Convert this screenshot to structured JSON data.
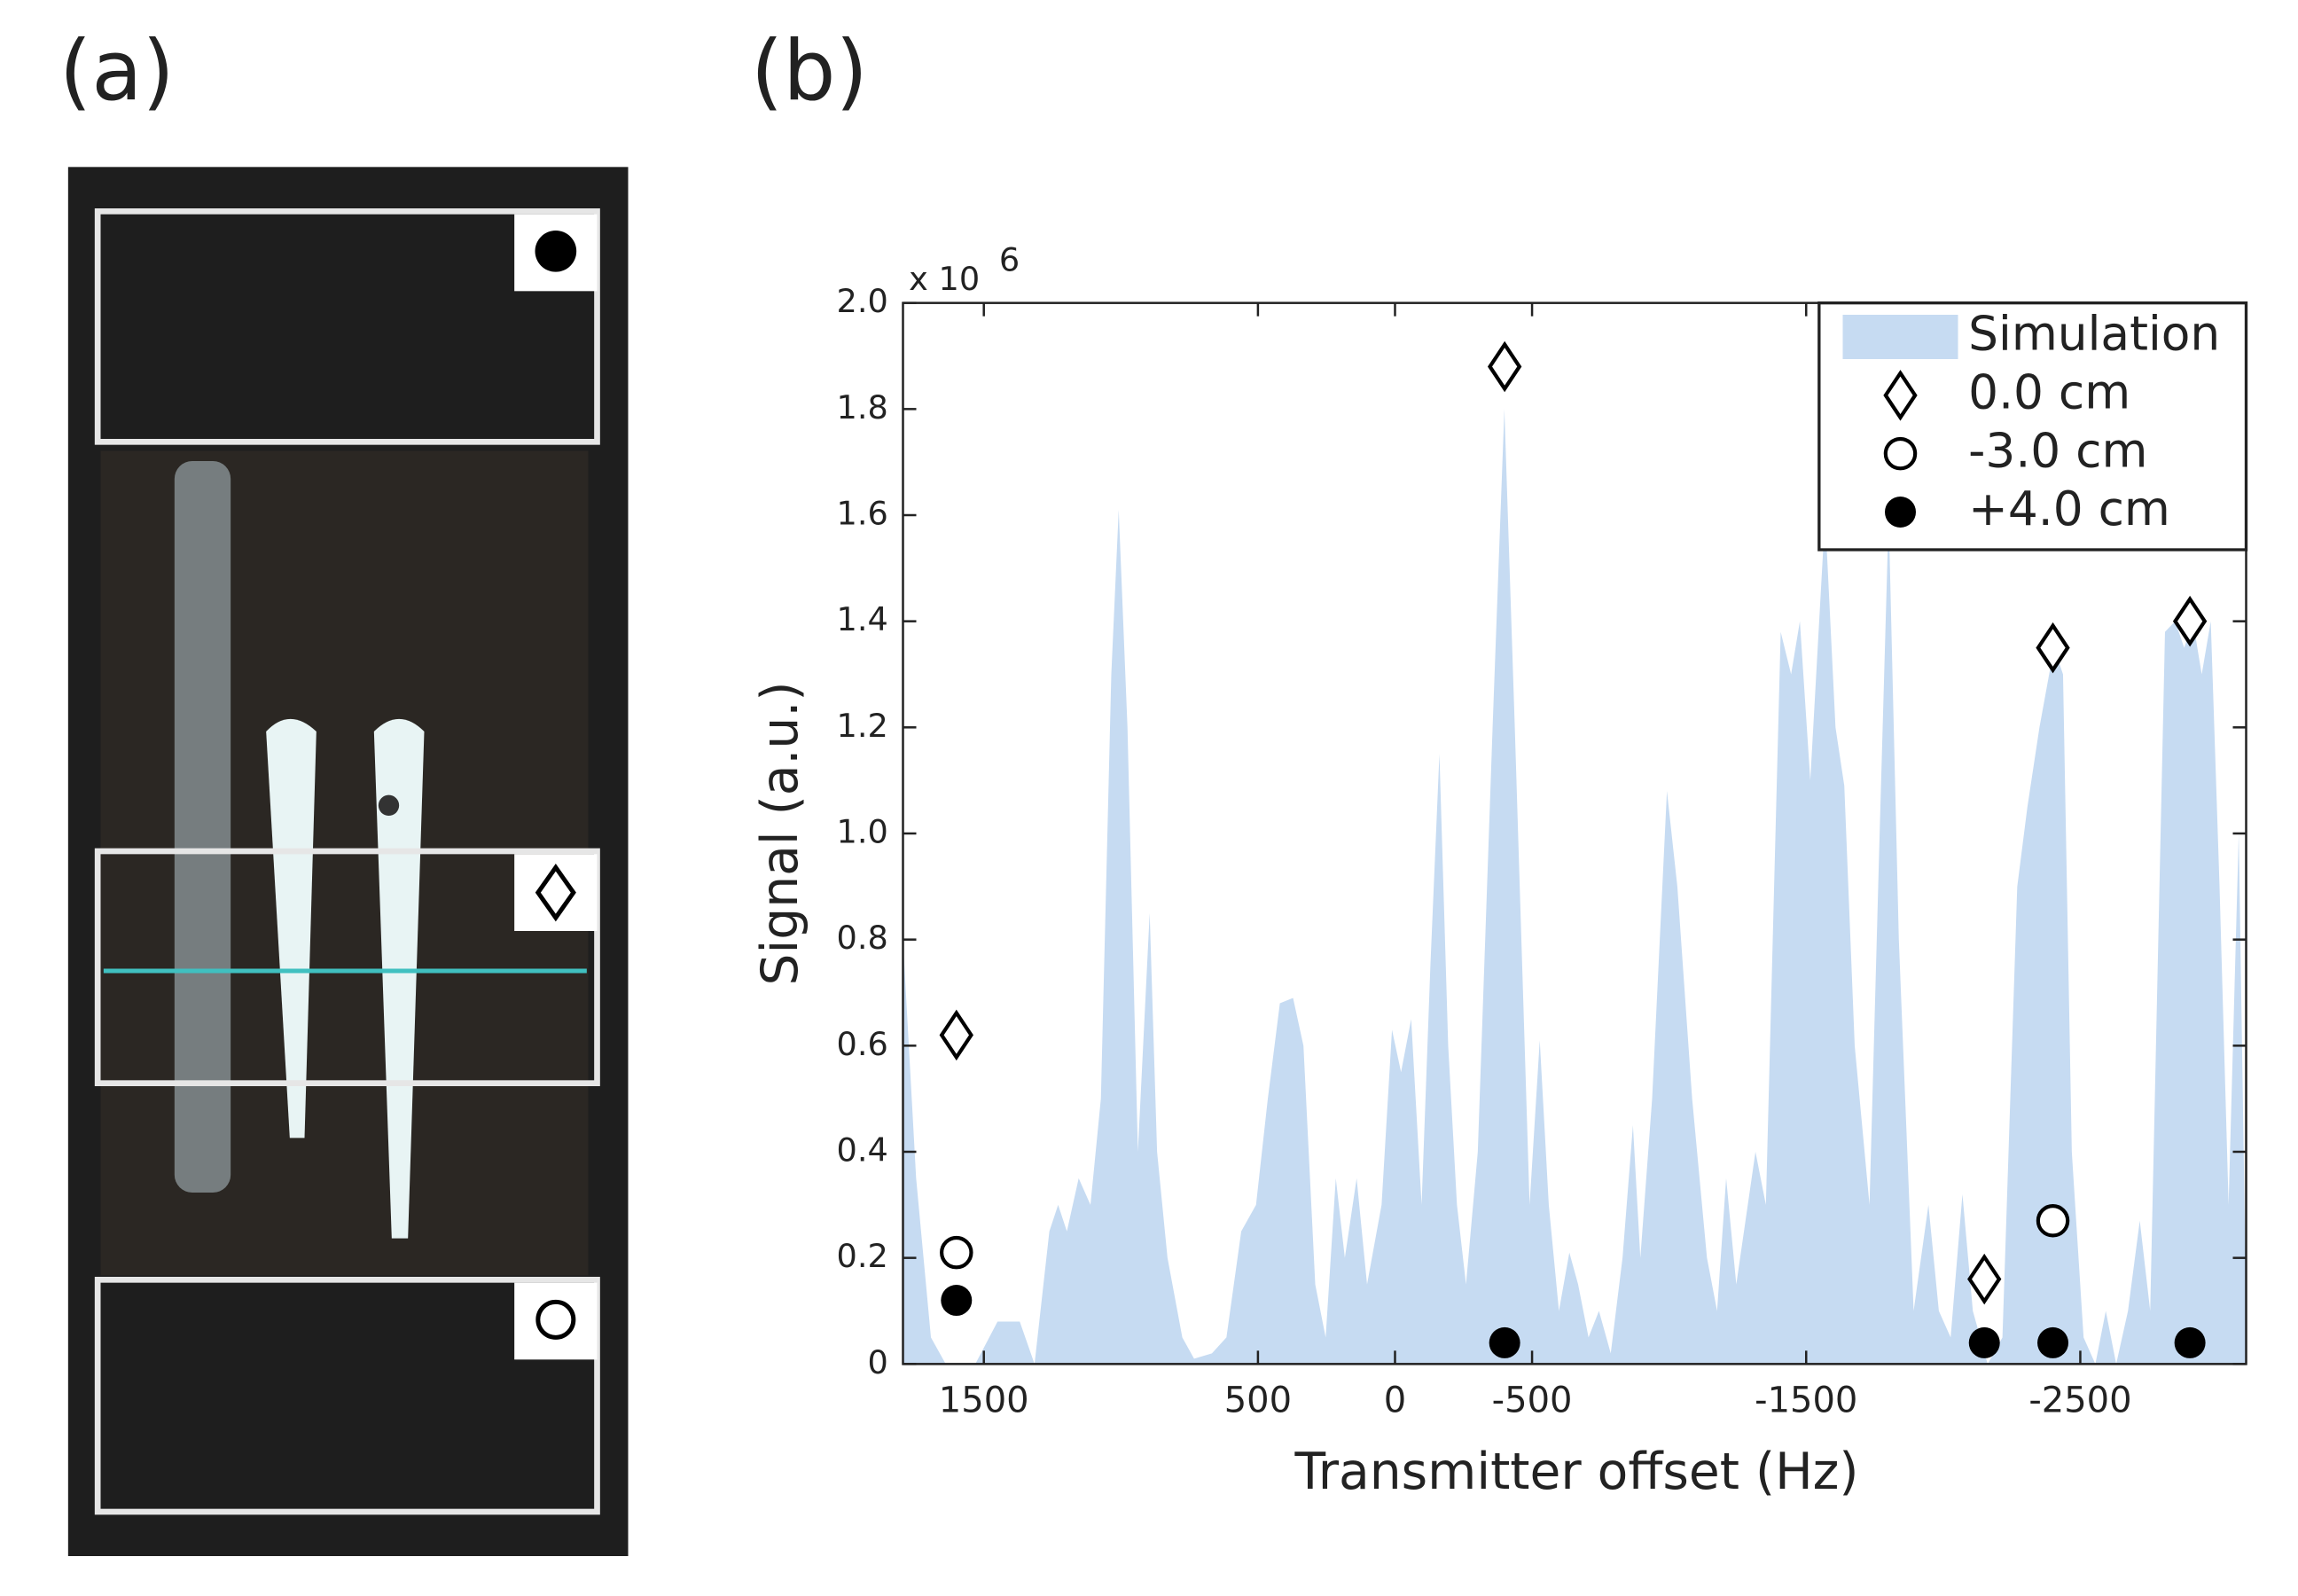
{
  "panel_labels": [
    "(a)",
    "(b)"
  ],
  "chart_data": {
    "type": "area",
    "xlabel": "Transmitter offset (Hz)",
    "ylabel": "Signal (a.u.)",
    "y_exponent_base": "x 10",
    "y_exponent": 6,
    "xlim": [
      1795,
      -3105
    ],
    "ylim": [
      0,
      2
    ],
    "xticks": [
      1500,
      500,
      0,
      -500,
      -1500,
      -2500
    ],
    "yticks": [
      0,
      0.2,
      0.4,
      0.6,
      0.8,
      {
        "value": 1,
        "label": "1.0"
      },
      1.2,
      1.4,
      1.6,
      1.8,
      {
        "value": 2,
        "label": "2.0"
      }
    ],
    "legend": "upper right",
    "series": [
      {
        "name": "Simulation",
        "type": "area",
        "color": "#c6dbf2",
        "x": [
          1795,
          1747,
          1693,
          1639,
          1531,
          1450,
          1369,
          1315,
          1261,
          1229,
          1197,
          1154,
          1111,
          1073,
          1035,
          1008,
          976,
          938,
          895,
          868,
          830,
          776,
          733,
          668,
          615,
          561,
          507,
          464,
          420,
          372,
          334,
          291,
          253,
          216,
          183,
          140,
          102,
          49,
          11,
          -22,
          -59,
          -97,
          -129,
          -162,
          -194,
          -226,
          -259,
          -302,
          -356,
          -399,
          -437,
          -491,
          -528,
          -561,
          -598,
          -636,
          -668,
          -706,
          -744,
          -787,
          -830,
          -868,
          -895,
          -938,
          -992,
          -1030,
          -1084,
          -1138,
          -1175,
          -1208,
          -1245,
          -1315,
          -1353,
          -1407,
          -1445,
          -1477,
          -1515,
          -1569,
          -1607,
          -1639,
          -1677,
          -1731,
          -1768,
          -1801,
          -1838,
          -1892,
          -1946,
          -1984,
          -2027,
          -2070,
          -2108,
          -2162,
          -2216,
          -2270,
          -2307,
          -2351,
          -2404,
          -2437,
          -2469,
          -2512,
          -2555,
          -2593,
          -2631,
          -2674,
          -2717,
          -2755,
          -2809,
          -2846,
          -2879,
          -2911,
          -2943,
          -2976,
          -3008,
          -3041,
          -3078,
          -3105
        ],
        "values": [
          0.8,
          0.35,
          0.05,
          0,
          0,
          0.08,
          0.08,
          0,
          0.25,
          0.3,
          0.25,
          0.35,
          0.3,
          0.5,
          1.3,
          1.61,
          1.2,
          0.4,
          0.85,
          0.4,
          0.2,
          0.05,
          0.01,
          0.02,
          0.05,
          0.25,
          0.3,
          0.5,
          0.68,
          0.69,
          0.6,
          0.15,
          0.05,
          0.35,
          0.2,
          0.35,
          0.15,
          0.3,
          0.63,
          0.55,
          0.65,
          0.3,
          0.75,
          1.15,
          0.6,
          0.3,
          0.15,
          0.4,
          1.2,
          1.8,
          1.2,
          0.3,
          0.61,
          0.3,
          0.1,
          0.21,
          0.15,
          0.05,
          0.1,
          0.02,
          0.2,
          0.45,
          0.2,
          0.5,
          1.08,
          0.9,
          0.5,
          0.2,
          0.1,
          0.35,
          0.15,
          0.4,
          0.3,
          1.38,
          1.3,
          1.4,
          1.1,
          1.6,
          1.2,
          1.09,
          0.6,
          0.3,
          1.0,
          1.6,
          0.8,
          0.1,
          0.3,
          0.1,
          0.05,
          0.32,
          0.1,
          0,
          0.05,
          0.9,
          1.05,
          1.2,
          1.35,
          1.3,
          0.4,
          0.05,
          0,
          0.1,
          0,
          0.1,
          0.27,
          0.1,
          1.38,
          1.4,
          1.35,
          1.4,
          1.3,
          1.4,
          0.9,
          0.3,
          1.0,
          0.1
        ]
      },
      {
        "name": "0.0 cm",
        "type": "scatter",
        "marker": "diamond",
        "color": "#000000",
        "x": [
          1600,
          -400,
          -2150,
          -2400,
          -2900
        ],
        "values": [
          0.62,
          1.88,
          0.16,
          1.35,
          1.4
        ]
      },
      {
        "name": "-3.0 cm",
        "type": "scatter",
        "marker": "circle",
        "color": "#000000",
        "x": [
          1600,
          -2400
        ],
        "values": [
          0.21,
          0.27
        ]
      },
      {
        "name": "+4.0 cm",
        "type": "scatter",
        "marker": "filled-circle",
        "color": "#000000",
        "x": [
          1600,
          -400,
          -2150,
          -2400,
          -2900
        ],
        "values": [
          0.12,
          0.04,
          0.04,
          0.04,
          0.04
        ]
      }
    ]
  }
}
